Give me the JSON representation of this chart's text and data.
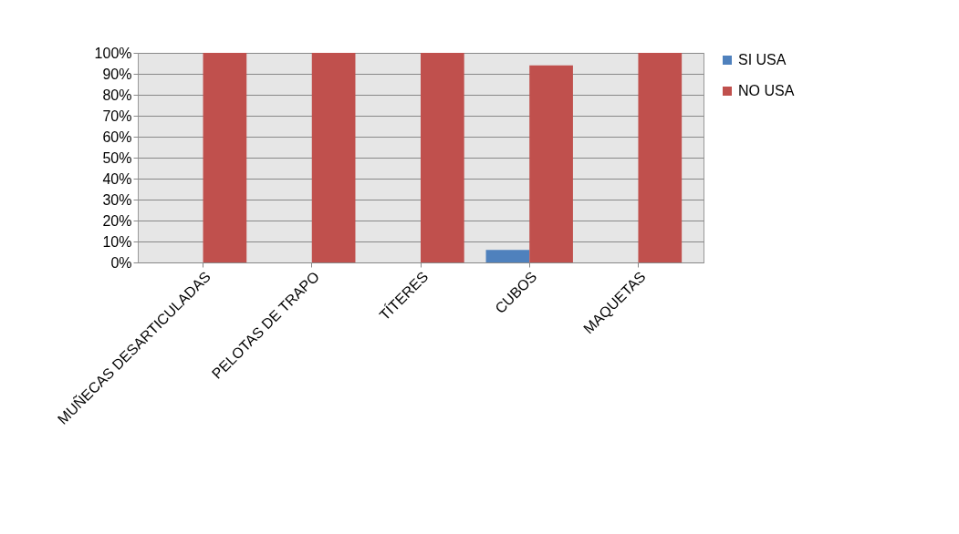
{
  "chart_data": {
    "type": "bar",
    "categories": [
      "MUÑECAS DESARTICULADAS",
      "PELOTAS DE TRAPO",
      "TÍTERES",
      "CUBOS",
      "MAQUETAS"
    ],
    "series": [
      {
        "name": "SI USA",
        "color": "#4f81bd",
        "values": [
          0,
          0,
          0,
          6,
          0
        ]
      },
      {
        "name": "NO USA",
        "color": "#c0504d",
        "values": [
          100,
          100,
          100,
          94,
          100
        ]
      }
    ],
    "ylim": [
      0,
      100
    ],
    "yticks": [
      {
        "value": 0,
        "label": "0%"
      },
      {
        "value": 10,
        "label": "10%"
      },
      {
        "value": 20,
        "label": "20%"
      },
      {
        "value": 30,
        "label": "30%"
      },
      {
        "value": 40,
        "label": "40%"
      },
      {
        "value": 50,
        "label": "50%"
      },
      {
        "value": 60,
        "label": "60%"
      },
      {
        "value": 70,
        "label": "70%"
      },
      {
        "value": 80,
        "label": "80%"
      },
      {
        "value": 90,
        "label": "90%"
      },
      {
        "value": 100,
        "label": "100%"
      }
    ],
    "grid": "y",
    "legend": "right"
  }
}
